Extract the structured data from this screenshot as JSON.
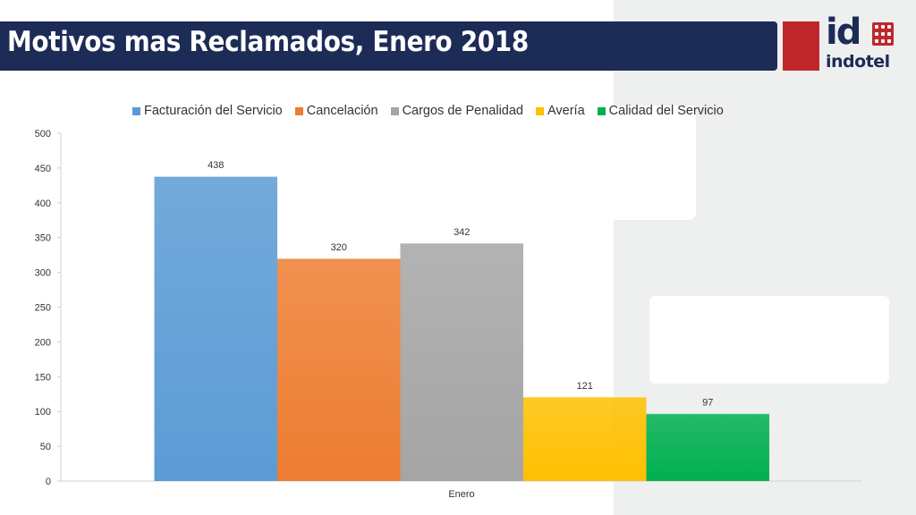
{
  "header": {
    "title": "Motivos mas Reclamados, Enero 2018"
  },
  "logo": {
    "mark": "id",
    "name": "indotel",
    "colors": {
      "red": "#c0272d",
      "navy": "#1d2b57"
    }
  },
  "chart_data": {
    "type": "bar",
    "title": "",
    "categories": [
      "Enero"
    ],
    "series": [
      {
        "name": "Facturación del Servicio",
        "values": [
          438
        ],
        "color": "#5b9bd5"
      },
      {
        "name": "Cancelación",
        "values": [
          320
        ],
        "color": "#ed7d31"
      },
      {
        "name": "Cargos de Penalidad",
        "values": [
          342
        ],
        "color": "#a5a5a5"
      },
      {
        "name": "Avería",
        "values": [
          121
        ],
        "color": "#ffc000"
      },
      {
        "name": "Calidad del Servicio",
        "values": [
          97
        ],
        "color": "#00b050"
      }
    ],
    "xlabel": "",
    "ylabel": "",
    "ylim": [
      0,
      500
    ],
    "yticks": [
      0,
      50,
      100,
      150,
      200,
      250,
      300,
      350,
      400,
      450,
      500
    ],
    "grid": false,
    "legend": "top",
    "data_labels": true
  }
}
